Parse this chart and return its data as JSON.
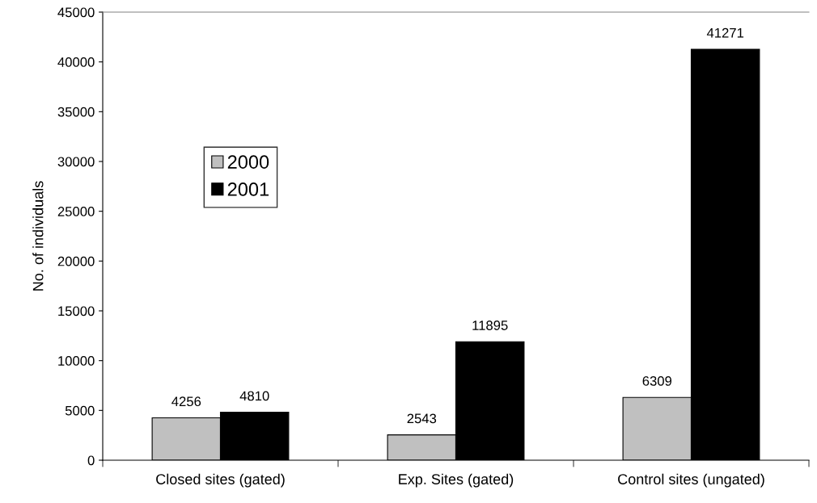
{
  "chart_data": {
    "type": "bar",
    "ylabel": "No. of individuals",
    "categories": [
      "Closed sites (gated)",
      "Exp. Sites (gated)",
      "Control sites (ungated)"
    ],
    "series": [
      {
        "name": "2000",
        "color": "#c0c0c0",
        "values": [
          4256,
          2543,
          6309
        ]
      },
      {
        "name": "2001",
        "color": "#000000",
        "values": [
          4810,
          11895,
          41271
        ]
      }
    ],
    "ylim": [
      0,
      45000
    ],
    "yticks": [
      0,
      5000,
      10000,
      15000,
      20000,
      25000,
      30000,
      35000,
      40000,
      45000
    ],
    "data_labels": true,
    "grid": false,
    "legend": "left"
  }
}
